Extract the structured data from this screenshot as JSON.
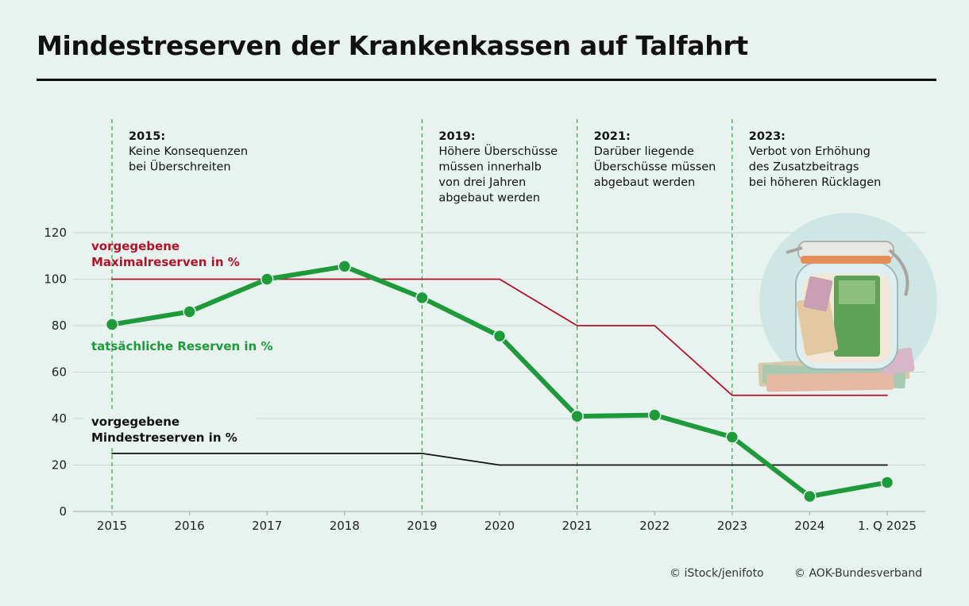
{
  "title": "Mindestreserven der Krankenkassen auf Talfahrt",
  "credits": {
    "photo": "© iStock/jenifoto",
    "org": "© AOK-Bundesverband"
  },
  "photo_icon": "money-jar-icon",
  "colors": {
    "background": "#e8f3ef",
    "actual": "#1e9a3a",
    "max": "#b0122a",
    "min": "#111111",
    "grid": "#c9d6d2",
    "marker": "#47b35a"
  },
  "chart_data": {
    "type": "line",
    "categories": [
      "2015",
      "2016",
      "2017",
      "2018",
      "2019",
      "2020",
      "2021",
      "2022",
      "2023",
      "2024",
      "1. Q 2025"
    ],
    "ylim": [
      0,
      120
    ],
    "yticks": [
      0,
      20,
      40,
      60,
      80,
      100,
      120
    ],
    "grid": true,
    "series": [
      {
        "key": "actual",
        "name": "tatsächliche Reserven in %",
        "values": [
          80.5,
          86,
          100,
          105.5,
          92,
          75.5,
          41,
          41.5,
          32,
          6.5,
          12.5
        ]
      },
      {
        "key": "max",
        "name": "vorgegebene Maximalreserven in %",
        "values": [
          100,
          100,
          100,
          100,
          100,
          100,
          80,
          80,
          50,
          50,
          50
        ]
      },
      {
        "key": "min",
        "name": "vorgegebene Mindestreserven in %",
        "values": [
          25,
          25,
          25,
          25,
          25,
          20,
          20,
          20,
          20,
          20,
          20
        ]
      }
    ],
    "series_labels": {
      "max": [
        "vorgegebene",
        "Maximalreserven in %"
      ],
      "actual": [
        "tatsächliche Reserven in %"
      ],
      "min": [
        "vorgegebene",
        "Mindestreserven in %"
      ]
    },
    "annotations": [
      {
        "category": "2015",
        "year": "2015:",
        "lines": [
          "Keine Konsequenzen",
          "bei Überschreiten"
        ]
      },
      {
        "category": "2019",
        "year": "2019:",
        "lines": [
          "Höhere Überschüsse",
          "müssen innerhalb",
          "von drei Jahren",
          "abgebaut werden"
        ]
      },
      {
        "category": "2021",
        "year": "2021:",
        "lines": [
          "Darüber liegende",
          "Überschüsse müssen",
          "abgebaut werden"
        ]
      },
      {
        "category": "2023",
        "year": "2023:",
        "lines": [
          "Verbot von Erhöhung",
          "des Zusatzbeitrags",
          "bei höheren Rücklagen"
        ]
      }
    ]
  }
}
